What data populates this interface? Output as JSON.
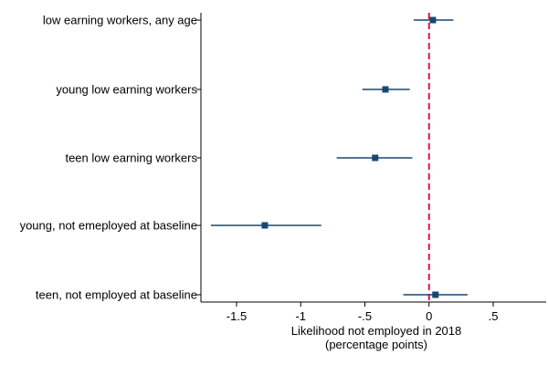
{
  "chart_data": {
    "type": "scatter",
    "subtype": "coefficient-plot",
    "categories": [
      "low earning workers, any age",
      "young low earning workers",
      "teen low earning workers",
      "young, not emeployed at baseline",
      "teen, not employed at baseline"
    ],
    "estimates": [
      0.03,
      -0.34,
      -0.42,
      -1.28,
      0.05
    ],
    "ci_low": [
      -0.12,
      -0.52,
      -0.72,
      -1.7,
      -0.2
    ],
    "ci_high": [
      0.19,
      -0.15,
      -0.13,
      -0.84,
      0.3
    ],
    "xlabel_line1": "Likelihood not employed in 2018",
    "xlabel_line2": "(percentage points)",
    "xticks": [
      -1.5,
      -1,
      -0.5,
      0,
      0.5
    ],
    "xtick_labels": [
      "-1.5",
      "-1",
      "-.5",
      "0",
      ".5"
    ],
    "xlim": [
      -1.78,
      0.92
    ],
    "reference_line": 0,
    "grid": false,
    "colors": {
      "marker": "#1a476f",
      "ci_line": "#1a476f",
      "reference_line": "#e8114f",
      "axis": "#000000"
    }
  }
}
